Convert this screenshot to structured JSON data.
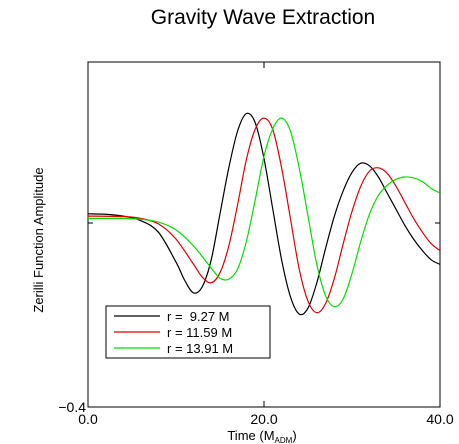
{
  "chart_data": {
    "type": "line",
    "title": "Gravity Wave Extraction",
    "xlabel": {
      "main": "Time (M",
      "sub": "ADM",
      "close": ")"
    },
    "ylabel": "Zerilli Function Amplitude",
    "xlim": [
      0,
      40
    ],
    "ylim": [
      -0.4,
      0.35
    ],
    "x_ticks": [
      {
        "value": 0,
        "label": "0.0"
      },
      {
        "value": 20,
        "label": "20.0"
      },
      {
        "value": 40,
        "label": "40.0"
      }
    ],
    "y_ticks": [
      {
        "value": -0.4,
        "label": "−0.4"
      }
    ],
    "grid": false,
    "legend_position": "lower-left",
    "series": [
      {
        "name": "r =  9.27 M",
        "color": "#000000",
        "x": [
          0,
          2,
          4,
          6,
          8,
          10,
          11,
          12,
          13,
          14,
          15,
          16,
          17,
          18,
          19,
          20,
          21,
          22,
          23,
          24,
          25,
          26,
          27,
          28,
          29,
          30,
          31,
          32,
          33,
          34,
          35,
          36,
          37,
          38,
          39,
          40
        ],
        "y": [
          0.02,
          0.019,
          0.015,
          0.005,
          -0.02,
          -0.085,
          -0.125,
          -0.152,
          -0.138,
          -0.08,
          0.02,
          0.12,
          0.2,
          0.238,
          0.218,
          0.14,
          0.03,
          -0.08,
          -0.16,
          -0.198,
          -0.185,
          -0.13,
          -0.055,
          0.015,
          0.07,
          0.11,
          0.13,
          0.124,
          0.1,
          0.065,
          0.03,
          -0.005,
          -0.035,
          -0.06,
          -0.08,
          -0.09
        ]
      },
      {
        "name": "r = 11.59 M",
        "color": "#e00000",
        "x": [
          0,
          4,
          6,
          8,
          10,
          12,
          13,
          14,
          15,
          16,
          17,
          18,
          19,
          20,
          21,
          22,
          23,
          24,
          25,
          26,
          27,
          28,
          29,
          30,
          31,
          32,
          33,
          34,
          35,
          36,
          37,
          38,
          39,
          40
        ],
        "y": [
          0.015,
          0.014,
          0.01,
          -0.002,
          -0.035,
          -0.09,
          -0.118,
          -0.13,
          -0.108,
          -0.05,
          0.04,
          0.138,
          0.204,
          0.228,
          0.203,
          0.12,
          0.01,
          -0.1,
          -0.17,
          -0.195,
          -0.175,
          -0.12,
          -0.045,
          0.025,
          0.08,
          0.113,
          0.12,
          0.108,
          0.08,
          0.045,
          0.01,
          -0.02,
          -0.045,
          -0.06
        ]
      },
      {
        "name": "r = 13.91 M",
        "color": "#00e000",
        "x": [
          0,
          4,
          6,
          8,
          10,
          12,
          14,
          15,
          16,
          17,
          18,
          19,
          20,
          21,
          22,
          23,
          24,
          25,
          26,
          27,
          28,
          29,
          30,
          31,
          32,
          33,
          34,
          35,
          36,
          37,
          38,
          39,
          40
        ],
        "y": [
          0.01,
          0.01,
          0.008,
          0.002,
          -0.015,
          -0.05,
          -0.098,
          -0.12,
          -0.122,
          -0.1,
          -0.04,
          0.05,
          0.145,
          0.205,
          0.228,
          0.2,
          0.12,
          0.015,
          -0.09,
          -0.158,
          -0.182,
          -0.165,
          -0.11,
          -0.04,
          0.02,
          0.06,
          0.082,
          0.095,
          0.1,
          0.098,
          0.09,
          0.075,
          0.065
        ]
      }
    ]
  }
}
